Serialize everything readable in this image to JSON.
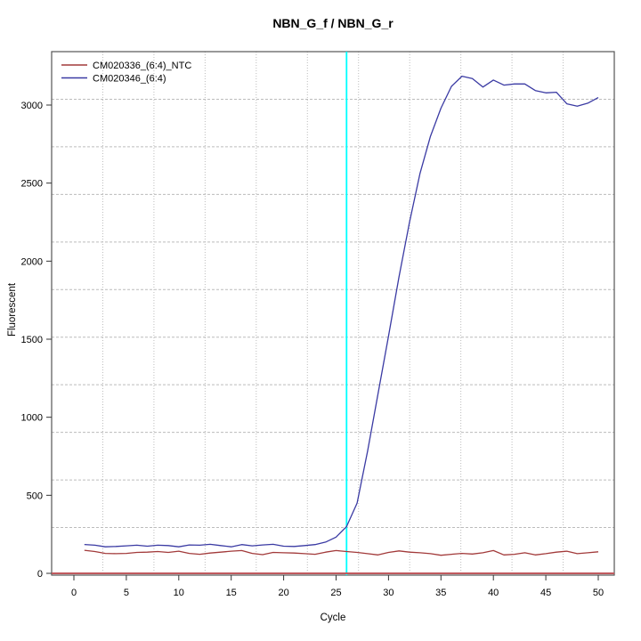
{
  "title": "NBN_G_f / NBN_G_r",
  "chart_data": {
    "type": "line",
    "title": "NBN_G_f / NBN_G_r",
    "xlabel": "Cycle",
    "ylabel": "Fluorescent",
    "xlim": [
      0,
      50
    ],
    "ylim": [
      0,
      3340
    ],
    "x_ticks": [
      0,
      5,
      10,
      15,
      20,
      25,
      30,
      35,
      40,
      45,
      50
    ],
    "y_ticks": [
      0,
      500,
      1000,
      1500,
      2000,
      2500,
      3000
    ],
    "grid": {
      "nx": 11,
      "ny": 11,
      "style": "dotted",
      "color": "#bcbcbc"
    },
    "legend_position": "top-left",
    "ct_marker": {
      "x": 26,
      "color": "#00ffff"
    },
    "baseline": {
      "y": 0,
      "color": "#c05a5e"
    },
    "x": [
      1,
      2,
      3,
      4,
      5,
      6,
      7,
      8,
      9,
      10,
      11,
      12,
      13,
      14,
      15,
      16,
      17,
      18,
      19,
      20,
      21,
      22,
      23,
      24,
      25,
      26,
      27,
      28,
      29,
      30,
      31,
      32,
      33,
      34,
      35,
      36,
      37,
      38,
      39,
      40,
      41,
      42,
      43,
      44,
      45,
      46,
      47,
      48,
      49,
      50
    ],
    "series": [
      {
        "name": "CM020336_(6:4)_NTC",
        "color": "#a23a3a",
        "values": [
          148,
          140,
          128,
          126,
          128,
          134,
          136,
          140,
          134,
          142,
          128,
          122,
          130,
          136,
          142,
          146,
          128,
          120,
          134,
          132,
          130,
          126,
          122,
          136,
          146,
          140,
          134,
          126,
          118,
          134,
          144,
          136,
          132,
          126,
          116,
          122,
          128,
          124,
          132,
          146,
          118,
          122,
          132,
          118,
          126,
          136,
          142,
          126,
          132,
          138
        ]
      },
      {
        "name": "CM020346_(6:4)",
        "color": "#3a3aa3",
        "values": [
          185,
          180,
          170,
          172,
          176,
          180,
          174,
          180,
          178,
          170,
          182,
          180,
          186,
          178,
          170,
          184,
          176,
          182,
          186,
          174,
          172,
          178,
          184,
          200,
          232,
          300,
          450,
          780,
          1150,
          1520,
          1900,
          2250,
          2560,
          2800,
          2980,
          3120,
          3185,
          3170,
          3115,
          3160,
          3128,
          3135,
          3135,
          3093,
          3078,
          3082,
          3008,
          2993,
          3012,
          3048
        ]
      }
    ]
  }
}
